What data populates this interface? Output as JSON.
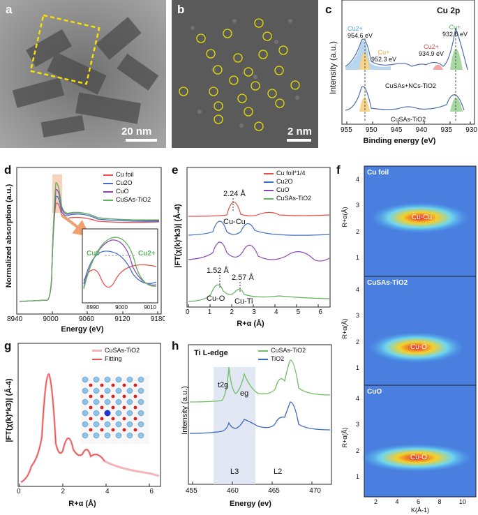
{
  "panel_labels": {
    "a": "a",
    "b": "b",
    "c": "c",
    "d": "d",
    "e": "e",
    "f": "f",
    "g": "g",
    "h": "h"
  },
  "panel_a": {
    "scale_bar": "20 nm"
  },
  "panel_b": {
    "scale_bar": "2 nm"
  },
  "panel_c": {
    "title": "Cu 2p",
    "xlabel": "Binding energy (eV)",
    "ylabel": "Intensity (a.u.)",
    "xticks": [
      "955",
      "950",
      "945",
      "940",
      "935",
      "930"
    ],
    "samples": [
      "CuSAs+NCs-TiO2",
      "CuSAs-TiO2"
    ],
    "peaks": [
      {
        "species": "Cu2+",
        "energy": "954.6 eV",
        "color": "#4f9fd6"
      },
      {
        "species": "Cu+",
        "energy": "952.3 eV",
        "color": "#e8a53a"
      },
      {
        "species": "Cu2+",
        "energy": "934.9 eV",
        "color": "#e0524a"
      },
      {
        "species": "Cu+",
        "energy": "932.6 eV",
        "color": "#4ea84e"
      }
    ]
  },
  "chart_data": [
    {
      "panel": "d",
      "type": "line",
      "xlabel": "Energy (eV)",
      "ylabel": "Normalized absorption (a.u.)",
      "xticks": [
        "8940",
        "9000",
        "9060",
        "9120",
        "9180"
      ],
      "inset_xticks": [
        "8990",
        "9000",
        "9010"
      ],
      "inset_annotations": [
        "Cu0",
        "Cu2+"
      ],
      "series": [
        {
          "name": "Cu foil",
          "color": "#e8504c"
        },
        {
          "name": "Cu2O",
          "color": "#3f6fc4"
        },
        {
          "name": "CuO",
          "color": "#8a46b6"
        },
        {
          "name": "CuSAs-TiO2",
          "color": "#5fb35a"
        }
      ]
    },
    {
      "panel": "e",
      "type": "line",
      "xlabel": "R+α (Å)",
      "ylabel": "|FT(χ(k)*k3)| (Å-4)",
      "xticks": [
        "0",
        "1",
        "2",
        "3",
        "4",
        "5",
        "6"
      ],
      "series": [
        {
          "name": "Cu foil*1/4",
          "color": "#e8504c"
        },
        {
          "name": "Cu2O",
          "color": "#3f6fc4"
        },
        {
          "name": "CuO",
          "color": "#8a46b6"
        },
        {
          "name": "CuSAs-TiO2",
          "color": "#5fb35a"
        }
      ],
      "annotations": [
        {
          "text": "2.24 Å",
          "x": 2.24
        },
        {
          "text": "Cu-Cu"
        },
        {
          "text": "1.52 Å",
          "x": 1.52
        },
        {
          "text": "2.57 Å",
          "x": 2.57
        },
        {
          "text": "Cu-O"
        },
        {
          "text": "Cu-Ti"
        }
      ]
    },
    {
      "panel": "f",
      "type": "heatmap",
      "xlabel": "K(Å-1)",
      "ylabel": "R+α(Å)",
      "xticks": [
        "2",
        "4",
        "6",
        "8",
        "10"
      ],
      "yticks": [
        "1",
        "2",
        "3",
        "4"
      ],
      "subplots": [
        {
          "name": "Cu foil",
          "feature": "Cu-Cu"
        },
        {
          "name": "CuSAs-TiO2",
          "feature": "Cu-O"
        },
        {
          "name": "CuO",
          "feature": "Cu-O"
        }
      ]
    },
    {
      "panel": "g",
      "type": "line",
      "xlabel": "R+α (Å)",
      "ylabel": "|FT(χ(k)*k3)| (Å-4)",
      "xticks": [
        "0",
        "2",
        "4",
        "6"
      ],
      "series": [
        {
          "name": "CuSAs-TiO2",
          "color": "#f4b4b8"
        },
        {
          "name": "Fitting",
          "color": "#e8504c"
        }
      ]
    },
    {
      "panel": "h",
      "type": "line",
      "xlabel": "Energy (ev)",
      "ylabel": "Intensity (a.u.)",
      "title": "Ti L-edge",
      "xticks": [
        "455",
        "460",
        "465",
        "470"
      ],
      "series": [
        {
          "name": "CuSAs-TiO2",
          "color": "#6fbf5f"
        },
        {
          "name": "TiO2",
          "color": "#3a67c4"
        }
      ],
      "annotations": [
        "t2g",
        "eg",
        "L3",
        "L2"
      ]
    }
  ]
}
